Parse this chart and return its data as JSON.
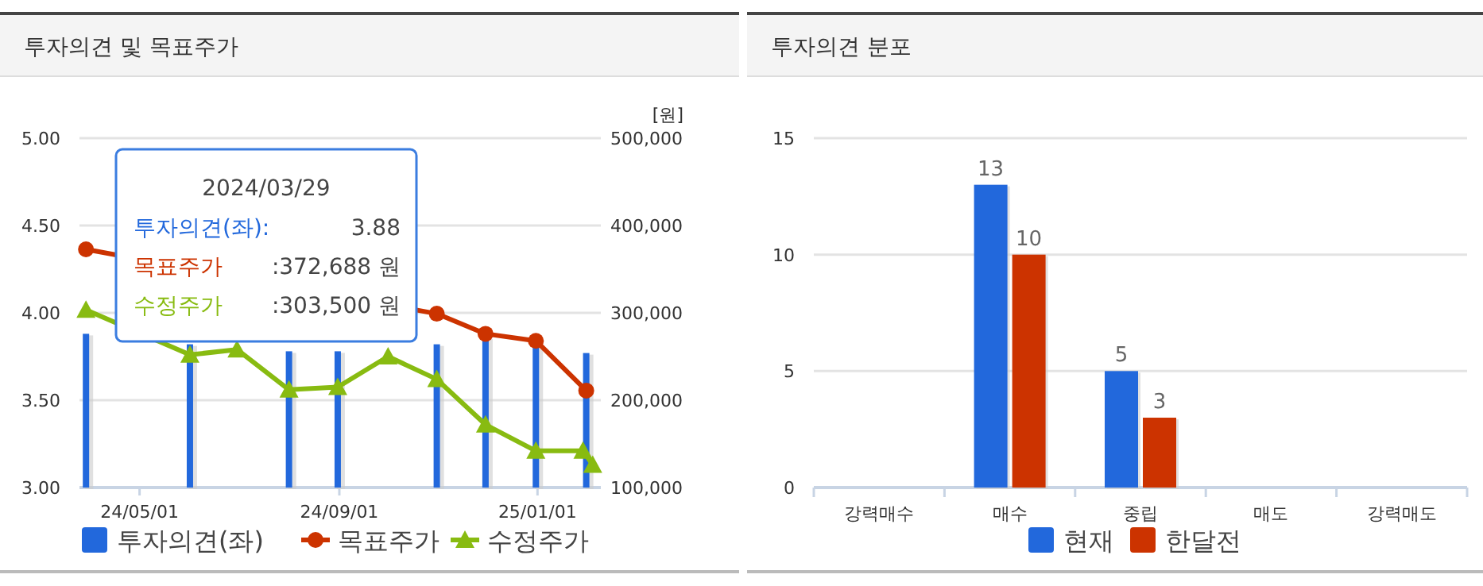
{
  "chart_data": [
    {
      "type": "bar",
      "title": "투자의견 및 목표주가",
      "y2label": "[원]",
      "xlim": [
        "2024-03-25",
        "2025-02-09"
      ],
      "xticks": [
        {
          "value": "2024-05-01",
          "label": "24/05/01"
        },
        {
          "value": "2024-09-01",
          "label": "24/09/01"
        },
        {
          "value": "2025-01-01",
          "label": "25/01/01"
        }
      ],
      "ylim": [
        3,
        5
      ],
      "yticks": [
        {
          "value": 3,
          "label": "3.00"
        },
        {
          "value": 3.5,
          "label": "3.50"
        },
        {
          "value": 4,
          "label": "4.00"
        },
        {
          "value": 4.5,
          "label": "4.50"
        },
        {
          "value": 5,
          "label": "5.00"
        }
      ],
      "y2lim": [
        100000,
        500000
      ],
      "y2ticks": [
        {
          "value": 100000,
          "label": "100,000"
        },
        {
          "value": 200000,
          "label": "200,000"
        },
        {
          "value": 300000,
          "label": "300,000"
        },
        {
          "value": 400000,
          "label": "400,000"
        },
        {
          "value": 500000,
          "label": "500,000"
        }
      ],
      "series": [
        {
          "name": "투자의견(좌)",
          "type": "bar",
          "color": "#2268dc",
          "x": [
            "2024-03-29",
            "2024-06-01",
            "2024-08-01",
            "2024-08-31",
            "2024-10-31",
            "2024-11-30",
            "2024-12-31",
            "2025-01-31"
          ],
          "values": [
            3.88,
            3.82,
            3.78,
            3.78,
            3.82,
            3.86,
            3.82,
            3.77
          ]
        },
        {
          "name": "목표주가",
          "type": "line",
          "axis": "y2",
          "color": "#cc3300",
          "marker": "circle",
          "x": [
            "2024-03-29",
            "2024-10-31",
            "2024-11-30",
            "2024-12-31",
            "2025-01-31"
          ],
          "values": [
            372688,
            299000,
            276000,
            268000,
            211000
          ]
        },
        {
          "name": "수정주가",
          "type": "line",
          "axis": "y2",
          "color": "#88bb11",
          "marker": "triangle",
          "x": [
            "2024-03-29",
            "2024-06-01",
            "2024-06-30",
            "2024-08-01",
            "2024-08-31",
            "2024-10-01",
            "2024-10-31",
            "2024-11-30",
            "2024-12-31",
            "2025-01-29",
            "2025-02-04"
          ],
          "values": [
            303500,
            252000,
            258000,
            212000,
            215000,
            250000,
            224000,
            172000,
            142000,
            142000,
            126000
          ]
        }
      ],
      "annotations": [
        "2024/03/29",
        "투자의견(좌):",
        "3.88",
        "목표주가",
        ":372,688 원",
        "수정주가",
        ":303,500 원"
      ],
      "grid": "y",
      "legend": "bottom"
    },
    {
      "type": "bar",
      "title": "투자의견 분포",
      "categories": [
        "강력매수",
        "매수",
        "중립",
        "매도",
        "강력매도"
      ],
      "ylim": [
        0,
        15
      ],
      "yticks": [
        0,
        5,
        10,
        15
      ],
      "series": [
        {
          "name": "현재",
          "color": "#2268dc",
          "values": [
            0,
            13,
            5,
            0,
            0
          ],
          "value_labels": [
            null,
            "13",
            "5",
            null,
            null
          ]
        },
        {
          "name": "한달전",
          "color": "#cc3300",
          "values": [
            0,
            10,
            3,
            0,
            0
          ],
          "value_labels": [
            null,
            "10",
            "3",
            null,
            null
          ]
        }
      ],
      "grid": "y",
      "legend": "bottom"
    }
  ]
}
